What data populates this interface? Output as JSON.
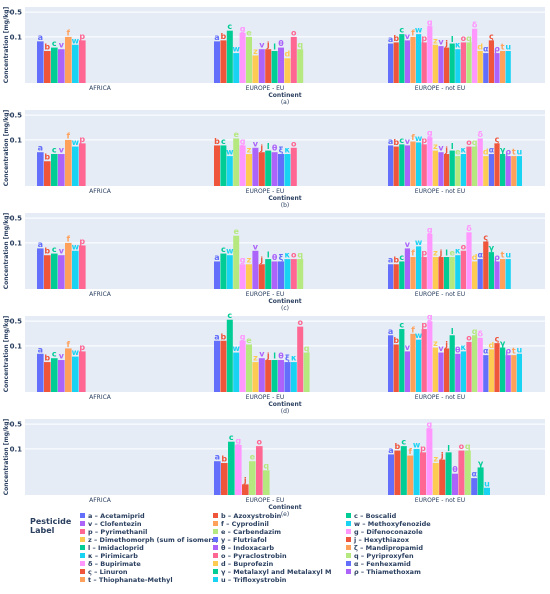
{
  "chart_data": {
    "type": "bar",
    "legend_title": [
      "Pesticide",
      "Label"
    ],
    "ylabel": "Concentration [mg/kg]",
    "xlabel": "Continent",
    "yscale": "log",
    "ylim": [
      0.005,
      0.7
    ],
    "yticks": [
      {
        "v": 0.5,
        "t": "0.5"
      },
      {
        "v": 0.1,
        "t": "0.1"
      }
    ],
    "categories": [
      "AFRICA",
      "EUROPE - EU",
      "EUROPE - not EU"
    ],
    "pesticides": {
      "a": {
        "name": "Acetamiprid",
        "color": "#636efa"
      },
      "b": {
        "name": "Azoxystrobin",
        "color": "#ef553b"
      },
      "c": {
        "name": "Boscalid",
        "color": "#00cc96"
      },
      "v": {
        "name": "Clofentezin",
        "color": "#ab63fa"
      },
      "f": {
        "name": "Cyprodinil",
        "color": "#ffa15a"
      },
      "w": {
        "name": "Methoxyfenozide",
        "color": "#19d3f3"
      },
      "p": {
        "name": "Pyrimethanil",
        "color": "#ff6692"
      },
      "e": {
        "name": "Carbendazim",
        "color": "#b6e880"
      },
      "g": {
        "name": "Difenoconazole",
        "color": "#ff97ff"
      },
      "z": {
        "name": "Dimethomorph (sum of isomers)",
        "color": "#fecb52"
      },
      "y": {
        "name": "Flutriafol",
        "color": "#636efa"
      },
      "j": {
        "name": "Hexythiazox",
        "color": "#ef553b"
      },
      "l": {
        "name": "Imidacloprid",
        "color": "#00cc96"
      },
      "θ": {
        "name": "Indoxacarb",
        "color": "#ab63fa"
      },
      "ζ": {
        "name": "Mandipropamid",
        "color": "#ffa15a"
      },
      "κ": {
        "name": "Pirimicarb",
        "color": "#19d3f3"
      },
      "o": {
        "name": "Pyraclostrobin",
        "color": "#ff6692"
      },
      "q": {
        "name": "Pyriproxyfen",
        "color": "#b6e880"
      },
      "δ": {
        "name": "Bupirimate",
        "color": "#ff97ff"
      },
      "d": {
        "name": "Buprofezin",
        "color": "#fecb52"
      },
      "α": {
        "name": "Fenhexamid",
        "color": "#636efa"
      },
      "ς": {
        "name": "Linuron",
        "color": "#ef553b"
      },
      "γ": {
        "name": "Metalaxyl and Metalaxyl M",
        "color": "#00cc96"
      },
      "ρ": {
        "name": "Thiamethoxam",
        "color": "#ab63fa"
      },
      "t": {
        "name": "Thiophanate-Methyl",
        "color": "#ffa15a"
      },
      "u": {
        "name": "Trifloxystrobin",
        "color": "#19d3f3"
      }
    },
    "legend_order": [
      "a",
      "b",
      "c",
      "v",
      "f",
      "w",
      "p",
      "e",
      "g",
      "z",
      "y",
      "j",
      "l",
      "θ",
      "ζ",
      "κ",
      "o",
      "q",
      "δ",
      "d",
      "α",
      "ς",
      "γ",
      "ρ",
      "t",
      "u"
    ],
    "panels": [
      {
        "id": "(a)",
        "groups": [
          [
            [
              "a",
              0.075
            ],
            [
              "b",
              0.04
            ],
            [
              "c",
              0.05
            ],
            [
              "v",
              0.045
            ],
            [
              "f",
              0.1
            ],
            [
              "w",
              0.06
            ],
            [
              "p",
              0.08
            ]
          ],
          [
            [
              "a",
              0.075
            ],
            [
              "b",
              0.08
            ],
            [
              "c",
              0.15
            ],
            [
              "w",
              0.035
            ],
            [
              "g",
              0.13
            ],
            [
              "e",
              0.1
            ],
            [
              "z",
              0.03
            ],
            [
              "v",
              0.045
            ],
            [
              "j",
              0.045
            ],
            [
              "l",
              0.04
            ],
            [
              "θ",
              0.05
            ],
            [
              "d",
              0.025
            ],
            [
              "o",
              0.1
            ],
            [
              "q",
              0.045
            ]
          ],
          [
            [
              "a",
              0.065
            ],
            [
              "b",
              0.07
            ],
            [
              "c",
              0.12
            ],
            [
              "v",
              0.08
            ],
            [
              "f",
              0.1
            ],
            [
              "w",
              0.12
            ],
            [
              "p",
              0.07
            ],
            [
              "g",
              0.2
            ],
            [
              "z",
              0.06
            ],
            [
              "v",
              0.055
            ],
            [
              "j",
              0.05
            ],
            [
              "l",
              0.065
            ],
            [
              "κ",
              0.045
            ],
            [
              "o",
              0.07
            ],
            [
              "q",
              0.07
            ],
            [
              "δ",
              0.17
            ],
            [
              "d",
              0.04
            ],
            [
              "α",
              0.035
            ],
            [
              "ς",
              0.08
            ],
            [
              "ρ",
              0.035
            ],
            [
              "t",
              0.04
            ],
            [
              "u",
              0.04
            ]
          ]
        ]
      },
      {
        "id": "(b)",
        "groups": [
          [
            [
              "a",
              0.045
            ],
            [
              "b",
              0.025
            ],
            [
              "c",
              0.04
            ],
            [
              "v",
              0.04
            ],
            [
              "f",
              0.1
            ],
            [
              "w",
              0.065
            ],
            [
              "p",
              0.08
            ]
          ],
          [
            [
              "b",
              0.07
            ],
            [
              "c",
              0.07
            ],
            [
              "w",
              0.035
            ],
            [
              "e",
              0.11
            ],
            [
              "g",
              0.07
            ],
            [
              "z",
              0.04
            ],
            [
              "v",
              0.06
            ],
            [
              "j",
              0.045
            ],
            [
              "l",
              0.05
            ],
            [
              "θ",
              0.045
            ],
            [
              "ξ",
              0.04
            ],
            [
              "κ",
              0.04
            ],
            [
              "o",
              0.06
            ]
          ],
          [
            [
              "a",
              0.07
            ],
            [
              "b",
              0.065
            ],
            [
              "c",
              0.075
            ],
            [
              "v",
              0.07
            ],
            [
              "f",
              0.09
            ],
            [
              "w",
              0.085
            ],
            [
              "p",
              0.075
            ],
            [
              "g",
              0.12
            ],
            [
              "z",
              0.05
            ],
            [
              "v",
              0.045
            ],
            [
              "j",
              0.04
            ],
            [
              "l",
              0.05
            ],
            [
              "e",
              0.035
            ],
            [
              "κ",
              0.04
            ],
            [
              "o",
              0.065
            ],
            [
              "q",
              0.065
            ],
            [
              "δ",
              0.11
            ],
            [
              "d",
              0.035
            ],
            [
              "α",
              0.04
            ],
            [
              "ς",
              0.08
            ],
            [
              "γ",
              0.04
            ],
            [
              "ρ",
              0.035
            ],
            [
              "t",
              0.035
            ],
            [
              "u",
              0.035
            ]
          ]
        ]
      },
      {
        "id": "(c)",
        "groups": [
          [
            [
              "a",
              0.07
            ],
            [
              "b",
              0.045
            ],
            [
              "c",
              0.05
            ],
            [
              "v",
              0.045
            ],
            [
              "f",
              0.1
            ],
            [
              "w",
              0.06
            ],
            [
              "p",
              0.085
            ]
          ],
          [
            [
              "a",
              0.03
            ],
            [
              "c",
              0.05
            ],
            [
              "w",
              0.045
            ],
            [
              "e",
              0.16
            ],
            [
              "g",
              0.025
            ],
            [
              "z",
              0.025
            ],
            [
              "v",
              0.06
            ],
            [
              "j",
              0.025
            ],
            [
              "l",
              0.035
            ],
            [
              "θ",
              0.03
            ],
            [
              "ξ",
              0.03
            ],
            [
              "κ",
              0.035
            ],
            [
              "o",
              0.035
            ],
            [
              "q",
              0.035
            ]
          ],
          [
            [
              "a",
              0.025
            ],
            [
              "b",
              0.025
            ],
            [
              "c",
              0.03
            ],
            [
              "v",
              0.07
            ],
            [
              "f",
              0.04
            ],
            [
              "w",
              0.08
            ],
            [
              "p",
              0.04
            ],
            [
              "g",
              0.18
            ],
            [
              "z",
              0.04
            ],
            [
              "j",
              0.04
            ],
            [
              "l",
              0.04
            ],
            [
              "e",
              0.04
            ],
            [
              "κ",
              0.045
            ],
            [
              "o",
              0.06
            ],
            [
              "δ",
              0.2
            ],
            [
              "d",
              0.03
            ],
            [
              "α",
              0.035
            ],
            [
              "ς",
              0.11
            ],
            [
              "γ",
              0.055
            ],
            [
              "ρ",
              0.03
            ],
            [
              "t",
              0.035
            ],
            [
              "u",
              0.035
            ]
          ]
        ]
      },
      {
        "id": "(d)",
        "groups": [
          [
            [
              "a",
              0.06
            ],
            [
              "b",
              0.035
            ],
            [
              "c",
              0.045
            ],
            [
              "v",
              0.04
            ],
            [
              "f",
              0.085
            ],
            [
              "w",
              0.05
            ],
            [
              "p",
              0.07
            ]
          ],
          [
            [
              "a",
              0.14
            ],
            [
              "b",
              0.14
            ],
            [
              "c",
              0.55
            ],
            [
              "w",
              0.065
            ],
            [
              "g",
              0.14
            ],
            [
              "e",
              0.11
            ],
            [
              "z",
              0.035
            ],
            [
              "v",
              0.045
            ],
            [
              "j",
              0.04
            ],
            [
              "l",
              0.04
            ],
            [
              "θ",
              0.04
            ],
            [
              "ξ",
              0.035
            ],
            [
              "κ",
              0.035
            ],
            [
              "o",
              0.35
            ],
            [
              "q",
              0.065
            ]
          ],
          [
            [
              "a",
              0.2
            ],
            [
              "b",
              0.11
            ],
            [
              "c",
              0.3
            ],
            [
              "v",
              0.07
            ],
            [
              "f",
              0.22
            ],
            [
              "w",
              0.15
            ],
            [
              "p",
              0.3
            ],
            [
              "g",
              0.5
            ],
            [
              "z",
              0.09
            ],
            [
              "v",
              0.065
            ],
            [
              "j",
              0.085
            ],
            [
              "l",
              0.2
            ],
            [
              "θ",
              0.06
            ],
            [
              "κ",
              0.07
            ],
            [
              "o",
              0.13
            ],
            [
              "q",
              0.2
            ],
            [
              "δ",
              0.17
            ],
            [
              "α",
              0.055
            ],
            [
              "d",
              0.08
            ],
            [
              "ς",
              0.12
            ],
            [
              "γ",
              0.09
            ],
            [
              "ρ",
              0.055
            ],
            [
              "t",
              0.055
            ],
            [
              "u",
              0.06
            ]
          ]
        ]
      },
      {
        "id": "(e)",
        "groups": [
          [],
          [
            [
              "a",
              0.045
            ],
            [
              "b",
              0.04
            ],
            [
              "c",
              0.16
            ],
            [
              "g",
              0.13
            ],
            [
              "j",
              0.01
            ],
            [
              "e",
              0.045
            ],
            [
              "o",
              0.12
            ],
            [
              "q",
              0.025
            ]
          ],
          [
            [
              "a",
              0.07
            ],
            [
              "b",
              0.09
            ],
            [
              "c",
              0.12
            ],
            [
              "f",
              0.065
            ],
            [
              "w",
              0.1
            ],
            [
              "p",
              0.08
            ],
            [
              "g",
              0.38
            ],
            [
              "z",
              0.04
            ],
            [
              "j",
              0.05
            ],
            [
              "l",
              0.08
            ],
            [
              "θ",
              0.02
            ],
            [
              "o",
              0.09
            ],
            [
              "q",
              0.09
            ],
            [
              "α",
              0.015
            ],
            [
              "γ",
              0.03
            ],
            [
              "u",
              0.008
            ]
          ]
        ]
      }
    ]
  }
}
